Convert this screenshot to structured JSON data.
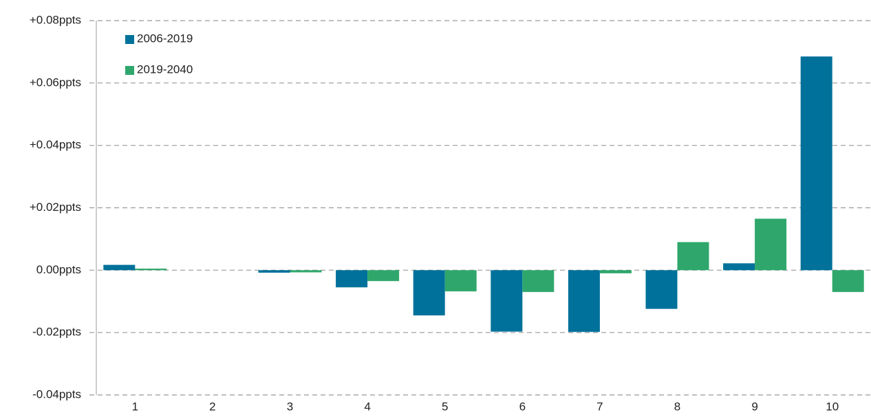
{
  "chart_data": {
    "type": "bar",
    "categories": [
      "1",
      "2",
      "3",
      "4",
      "5",
      "6",
      "7",
      "8",
      "9",
      "10"
    ],
    "series": [
      {
        "name": "2006-2019",
        "color": "#00719a",
        "values": [
          0.0017,
          0,
          -0.0008,
          -0.0055,
          -0.0145,
          -0.0197,
          -0.0198,
          -0.0124,
          0.0022,
          0.0685
        ]
      },
      {
        "name": "2019-2040",
        "color": "#2fa76c",
        "values": [
          0.0005,
          0,
          -0.0007,
          -0.0035,
          -0.0068,
          -0.007,
          -0.001,
          0.009,
          0.0165,
          -0.007
        ]
      }
    ],
    "ylim": [
      -0.04,
      0.08
    ],
    "yticks": [
      {
        "value": -0.04,
        "label": "-0.04ppts"
      },
      {
        "value": -0.02,
        "label": "-0.02ppts"
      },
      {
        "value": 0,
        "label": "0.00ppts"
      },
      {
        "value": 0.02,
        "label": "+0.02ppts"
      },
      {
        "value": 0.04,
        "label": "+0.04ppts"
      },
      {
        "value": 0.06,
        "label": "+0.06ppts"
      },
      {
        "value": 0.08,
        "label": "+0.08ppts"
      }
    ],
    "grid": true,
    "legend": "top-left"
  }
}
